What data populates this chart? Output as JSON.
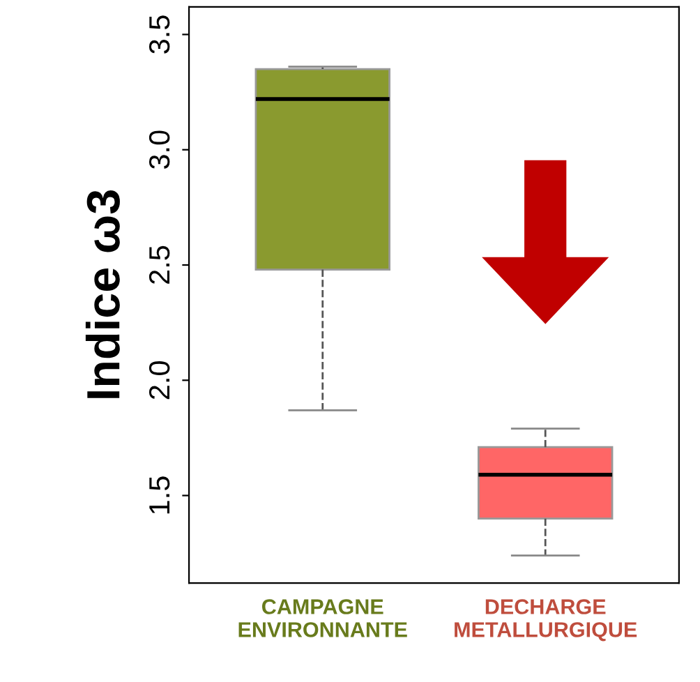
{
  "chart_data": {
    "type": "box",
    "ylabel": "Indice ω3",
    "categories": [
      "CAMPAGNE\nENVIRONNANTE",
      "DECHARGE\nMETALLURGIQUE"
    ],
    "colors": [
      "#8a9a2f",
      "#ff6666"
    ],
    "boxes": [
      {
        "low": 1.87,
        "q1": 2.48,
        "median": 3.22,
        "q3": 3.35,
        "high": 3.36
      },
      {
        "low": 1.24,
        "q1": 1.4,
        "median": 1.59,
        "q3": 1.71,
        "high": 1.79
      }
    ],
    "ylim": [
      1.12,
      3.62
    ],
    "yticks": [
      1.5,
      {
        "value": 2,
        "label": "2.0"
      },
      2.5,
      {
        "value": 3,
        "label": "3.0"
      },
      3.5
    ],
    "grid": false
  }
}
